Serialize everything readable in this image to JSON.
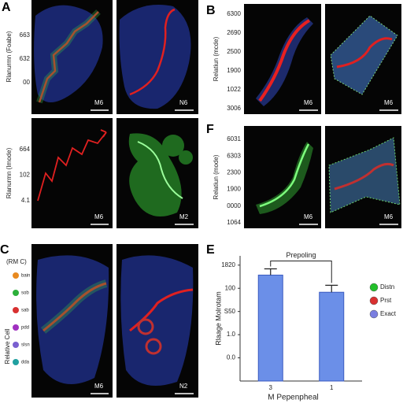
{
  "figure": {
    "panel_labels": [
      "A",
      "B",
      "F",
      "C",
      "E"
    ],
    "panel_a": {
      "axis_label_top": "Rlanurmn (Foabe)",
      "ticks_top": [
        "663",
        "632",
        "00"
      ],
      "scale_top": [
        "M6",
        "N6"
      ],
      "axis_label_bottom": "Rlanurmn (Imode)",
      "ticks_bottom": [
        "664",
        "102",
        "4.1"
      ],
      "scale_bottom": [
        "M6",
        "M2"
      ]
    },
    "panel_b": {
      "axis_label": "Relatiun (mcde)",
      "ticks": [
        "6300",
        "2690",
        "2500",
        "1900",
        "1022",
        "3006"
      ],
      "scale": [
        "M6",
        "M6"
      ]
    },
    "panel_f": {
      "axis_label": "Relatiun (mode)",
      "ticks": [
        "6031",
        "6303",
        "2300",
        "1900",
        "0000",
        "1064"
      ],
      "scale": [
        "M6",
        "M6"
      ]
    },
    "panel_c": {
      "title": "(RM C)",
      "axis_label": "Relative Cell",
      "legend": [
        "bain",
        "sob",
        "sab",
        "pdd",
        "slsn",
        "dda"
      ],
      "scale": [
        "M6",
        "N2"
      ]
    }
  },
  "chart_data": {
    "type": "bar",
    "title": "Prepoling",
    "x_label": "M Pepenpheal",
    "y_label": "Rlaage Molrotam",
    "categories": [
      "3",
      "1"
    ],
    "values": [
      4.57,
      3.83
    ],
    "errors": [
      0.27,
      0.3
    ],
    "color": "#6b8fe8",
    "ylim": [
      0,
      5.4
    ],
    "yticks": [
      {
        "value": 1,
        "label": "0.0"
      },
      {
        "value": 2,
        "label": "1.0"
      },
      {
        "value": 3,
        "label": "S50"
      },
      {
        "value": 4,
        "label": "100"
      },
      {
        "value": 5,
        "label": "1820"
      }
    ],
    "legend": [
      {
        "name": "Distn",
        "color": "#22c02a"
      },
      {
        "name": "Prst",
        "color": "#d93030"
      },
      {
        "name": "Exact",
        "color": "#7a7ee0"
      }
    ]
  }
}
